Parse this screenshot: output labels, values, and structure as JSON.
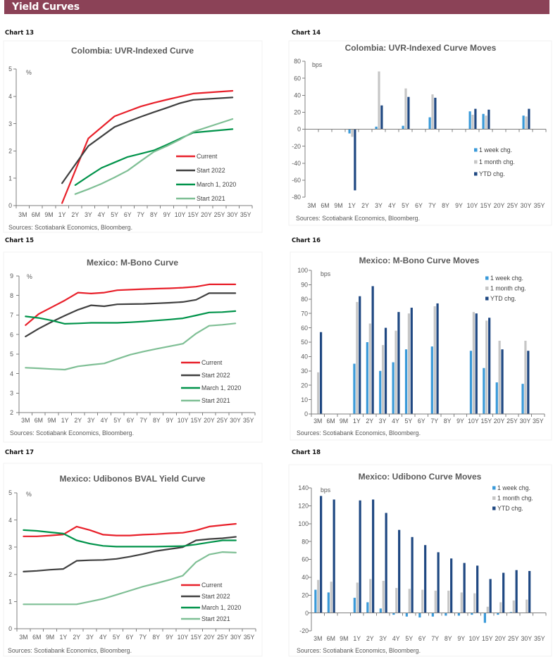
{
  "header": {
    "title": "Yield Curves"
  },
  "chart_data": [
    {
      "label": "Chart 13",
      "type": "line",
      "title": "Colombia: UVR-Indexed Curve",
      "unit": "%",
      "xlabel": "",
      "ylabel": "%",
      "categories": [
        "3M",
        "6M",
        "9M",
        "1Y",
        "2Y",
        "3Y",
        "4Y",
        "5Y",
        "6Y",
        "7Y",
        "8Y",
        "9Y",
        "10Y",
        "15Y",
        "20Y",
        "25Y",
        "30Y",
        "35Y"
      ],
      "ylim": [
        0,
        5
      ],
      "yticks": [
        0,
        1,
        2,
        3,
        4,
        5
      ],
      "grid": false,
      "legend_position": "bottom-right",
      "series": [
        {
          "name": "Current",
          "color": "#E8202A",
          "values": [
            null,
            null,
            null,
            0.09,
            null,
            2.46,
            null,
            3.27,
            3.45,
            3.63,
            3.76,
            3.88,
            3.99,
            4.1,
            null,
            null,
            4.2,
            null
          ]
        },
        {
          "name": "Start 2022",
          "color": "#404040",
          "values": [
            null,
            null,
            null,
            0.82,
            null,
            2.18,
            null,
            2.88,
            3.07,
            3.25,
            3.42,
            3.58,
            3.75,
            3.87,
            null,
            null,
            3.96,
            null
          ]
        },
        {
          "name": "March 1, 2020",
          "color": "#00934A",
          "values": [
            null,
            null,
            null,
            null,
            0.75,
            1.07,
            1.38,
            1.58,
            1.78,
            1.9,
            2.02,
            2.23,
            2.45,
            2.67,
            null,
            null,
            2.8,
            null
          ]
        },
        {
          "name": "Start 2021",
          "color": "#7FBF95",
          "values": [
            null,
            null,
            null,
            null,
            0.42,
            0.6,
            0.8,
            1.03,
            1.28,
            1.63,
            1.97,
            2.18,
            2.42,
            2.7,
            null,
            null,
            3.17,
            null
          ]
        }
      ],
      "source": "Sources: Scotiabank Economics, Bloomberg."
    },
    {
      "label": "Chart 14",
      "type": "bar",
      "title": "Colombia: UVR-Indexed Curve Moves",
      "unit": "bps",
      "xlabel": "",
      "ylabel": "bps",
      "categories": [
        "3M",
        "6M",
        "9M",
        "1Y",
        "2Y",
        "3Y",
        "4Y",
        "5Y",
        "6Y",
        "7Y",
        "8Y",
        "9Y",
        "10Y",
        "15Y",
        "20Y",
        "25Y",
        "30Y",
        "35Y"
      ],
      "ylim": [
        -80,
        80
      ],
      "yticks": [
        -80,
        -60,
        -40,
        -20,
        0,
        20,
        40,
        60,
        80
      ],
      "grid": false,
      "legend_position": "right",
      "series": [
        {
          "name": "1 week chg.",
          "color": "#3A9AD9",
          "values": [
            null,
            null,
            null,
            -5,
            null,
            3,
            null,
            4,
            null,
            14,
            null,
            null,
            21,
            18,
            null,
            null,
            16,
            null
          ]
        },
        {
          "name": "1 month chg.",
          "color": "#C6C6C6",
          "values": [
            null,
            null,
            null,
            -9,
            null,
            68,
            null,
            48,
            null,
            41,
            null,
            null,
            17,
            16,
            null,
            null,
            15,
            null
          ]
        },
        {
          "name": "YTD chg.",
          "color": "#1F4882",
          "values": [
            null,
            null,
            null,
            -72,
            null,
            28,
            null,
            38,
            null,
            37,
            null,
            null,
            24,
            23,
            null,
            null,
            24,
            null
          ]
        }
      ],
      "source": "Sources: Scotiabank Economics, Bloomberg."
    },
    {
      "label": "Chart 15",
      "type": "line",
      "title": "Mexico: M-Bono Curve",
      "unit": "%",
      "xlabel": "",
      "ylabel": "%",
      "categories": [
        "3M",
        "6M",
        "9M",
        "1Y",
        "2Y",
        "3Y",
        "4Y",
        "5Y",
        "6Y",
        "7Y",
        "8Y",
        "9Y",
        "10Y",
        "15Y",
        "20Y",
        "25Y",
        "30Y",
        "35Y"
      ],
      "ylim": [
        2,
        9
      ],
      "yticks": [
        2,
        3,
        4,
        5,
        6,
        7,
        8,
        9
      ],
      "grid": false,
      "legend_position": "bottom-right",
      "series": [
        {
          "name": "Current",
          "color": "#E8202A",
          "values": [
            6.48,
            7.05,
            7.4,
            7.75,
            8.15,
            8.1,
            8.15,
            8.27,
            8.3,
            8.33,
            8.35,
            8.37,
            8.4,
            8.45,
            8.57,
            8.57,
            8.57,
            null
          ]
        },
        {
          "name": "Start 2022",
          "color": "#404040",
          "values": [
            5.9,
            6.3,
            6.65,
            6.97,
            7.27,
            7.5,
            7.45,
            7.55,
            7.56,
            7.57,
            7.6,
            7.63,
            7.67,
            7.78,
            8.12,
            8.12,
            8.12,
            null
          ]
        },
        {
          "name": "March 1, 2020",
          "color": "#00934A",
          "values": [
            6.93,
            6.85,
            6.72,
            6.55,
            6.57,
            6.6,
            6.6,
            6.6,
            6.63,
            6.67,
            6.72,
            6.77,
            6.83,
            6.98,
            7.13,
            7.15,
            7.2,
            null
          ]
        },
        {
          "name": "Start 2021",
          "color": "#7FBF95",
          "values": [
            4.3,
            4.27,
            4.23,
            4.2,
            4.37,
            4.45,
            4.52,
            4.75,
            4.97,
            5.13,
            5.27,
            5.4,
            5.53,
            6.05,
            6.45,
            6.5,
            6.57,
            null
          ]
        }
      ],
      "source": "Sources: Scotiabank Economics, Bloomberg."
    },
    {
      "label": "Chart 16",
      "type": "bar",
      "title": "Mexico: M-Bono Curve Moves",
      "unit": "bps",
      "xlabel": "",
      "ylabel": "bps",
      "categories": [
        "3M",
        "6M",
        "9M",
        "1Y",
        "2Y",
        "3Y",
        "4Y",
        "5Y",
        "6Y",
        "7Y",
        "8Y",
        "9Y",
        "10Y",
        "15Y",
        "20Y",
        "25Y",
        "30Y",
        "35Y"
      ],
      "ylim": [
        0,
        100
      ],
      "yticks": [
        0,
        10,
        20,
        30,
        40,
        50,
        60,
        70,
        80,
        90,
        100
      ],
      "grid": false,
      "legend_position": "top-right",
      "series": [
        {
          "name": "1 week chg.",
          "color": "#3A9AD9",
          "values": [
            null,
            null,
            null,
            35,
            50,
            30,
            36,
            45,
            null,
            47,
            null,
            null,
            44,
            32,
            22,
            null,
            21,
            null
          ]
        },
        {
          "name": "1 month chg.",
          "color": "#C6C6C6",
          "values": [
            29,
            null,
            null,
            78,
            63,
            48,
            58,
            70,
            null,
            75,
            null,
            null,
            71,
            65,
            51,
            null,
            51,
            null
          ]
        },
        {
          "name": "YTD chg.",
          "color": "#1F4882",
          "values": [
            57,
            null,
            null,
            82,
            89,
            60,
            71,
            74,
            null,
            77,
            null,
            null,
            70,
            67,
            45,
            null,
            44,
            null
          ]
        }
      ],
      "source": "Sources: Scotiabank Economics, Bloomberg."
    },
    {
      "label": "Chart 17",
      "type": "line",
      "title": "Mexico: Udibonos BVAL Yield Curve",
      "unit": "%",
      "xlabel": "",
      "ylabel": "%",
      "categories": [
        "3M",
        "6M",
        "9M",
        "1Y",
        "2Y",
        "3Y",
        "4Y",
        "5Y",
        "6Y",
        "7Y",
        "8Y",
        "9Y",
        "10Y",
        "15Y",
        "20Y",
        "25Y",
        "30Y",
        "35Y"
      ],
      "ylim": [
        0,
        5
      ],
      "yticks": [
        0,
        1,
        2,
        3,
        4,
        5
      ],
      "grid": false,
      "legend_position": "bottom-right",
      "series": [
        {
          "name": "Current",
          "color": "#E8202A",
          "values": [
            3.4,
            3.4,
            3.43,
            3.47,
            3.76,
            3.63,
            3.46,
            3.43,
            3.43,
            3.46,
            3.48,
            3.51,
            3.53,
            3.62,
            3.76,
            3.81,
            3.86,
            null
          ]
        },
        {
          "name": "Start 2022",
          "color": "#404040",
          "values": [
            2.1,
            2.13,
            2.17,
            2.2,
            2.5,
            2.52,
            2.53,
            2.57,
            2.65,
            2.75,
            2.86,
            2.93,
            3.0,
            3.25,
            3.3,
            3.33,
            3.38,
            null
          ]
        },
        {
          "name": "March 1, 2020",
          "color": "#00934A",
          "values": [
            3.63,
            3.6,
            3.55,
            3.5,
            3.25,
            3.13,
            3.05,
            3.02,
            3.02,
            3.02,
            3.02,
            3.03,
            3.04,
            3.1,
            3.18,
            3.25,
            3.25,
            null
          ]
        },
        {
          "name": "Start 2021",
          "color": "#7FBF95",
          "values": [
            0.9,
            0.9,
            0.9,
            0.9,
            0.9,
            1.0,
            1.1,
            1.25,
            1.4,
            1.55,
            1.67,
            1.8,
            1.95,
            2.45,
            2.73,
            2.82,
            2.8,
            null
          ]
        }
      ],
      "source": "Sources: Scotiabank Economics, Bloomberg."
    },
    {
      "label": "Chart 18",
      "type": "bar",
      "title": "Mexico: Udibono Curve Moves",
      "unit": "bps",
      "xlabel": "",
      "ylabel": "bps",
      "categories": [
        "3M",
        "6M",
        "9M",
        "1Y",
        "2Y",
        "3Y",
        "4Y",
        "5Y",
        "6Y",
        "7Y",
        "8Y",
        "9Y",
        "10Y",
        "15Y",
        "20Y",
        "25Y",
        "30Y",
        "35Y"
      ],
      "ylim": [
        -20,
        140
      ],
      "yticks": [
        -20,
        0,
        20,
        40,
        60,
        80,
        100,
        120,
        140
      ],
      "grid": false,
      "legend_position": "top-right",
      "series": [
        {
          "name": "1 week chg.",
          "color": "#3A9AD9",
          "values": [
            26,
            23,
            null,
            17,
            12,
            5,
            -2,
            -4,
            -5,
            -4,
            -3,
            -3,
            -2,
            -11,
            -2,
            1,
            0,
            null
          ]
        },
        {
          "name": "1 month chg.",
          "color": "#C6C6C6",
          "values": [
            37,
            35,
            null,
            34,
            38,
            36,
            28,
            27,
            26,
            25,
            25,
            23,
            22,
            7,
            12,
            14,
            15,
            null
          ]
        },
        {
          "name": "YTD chg.",
          "color": "#1F4882",
          "values": [
            131,
            127,
            null,
            126,
            127,
            112,
            93,
            85,
            76,
            68,
            61,
            56,
            53,
            38,
            45,
            48,
            47,
            null
          ]
        }
      ],
      "source": "Sources: Scotiabank Economics, Bloomberg."
    }
  ]
}
